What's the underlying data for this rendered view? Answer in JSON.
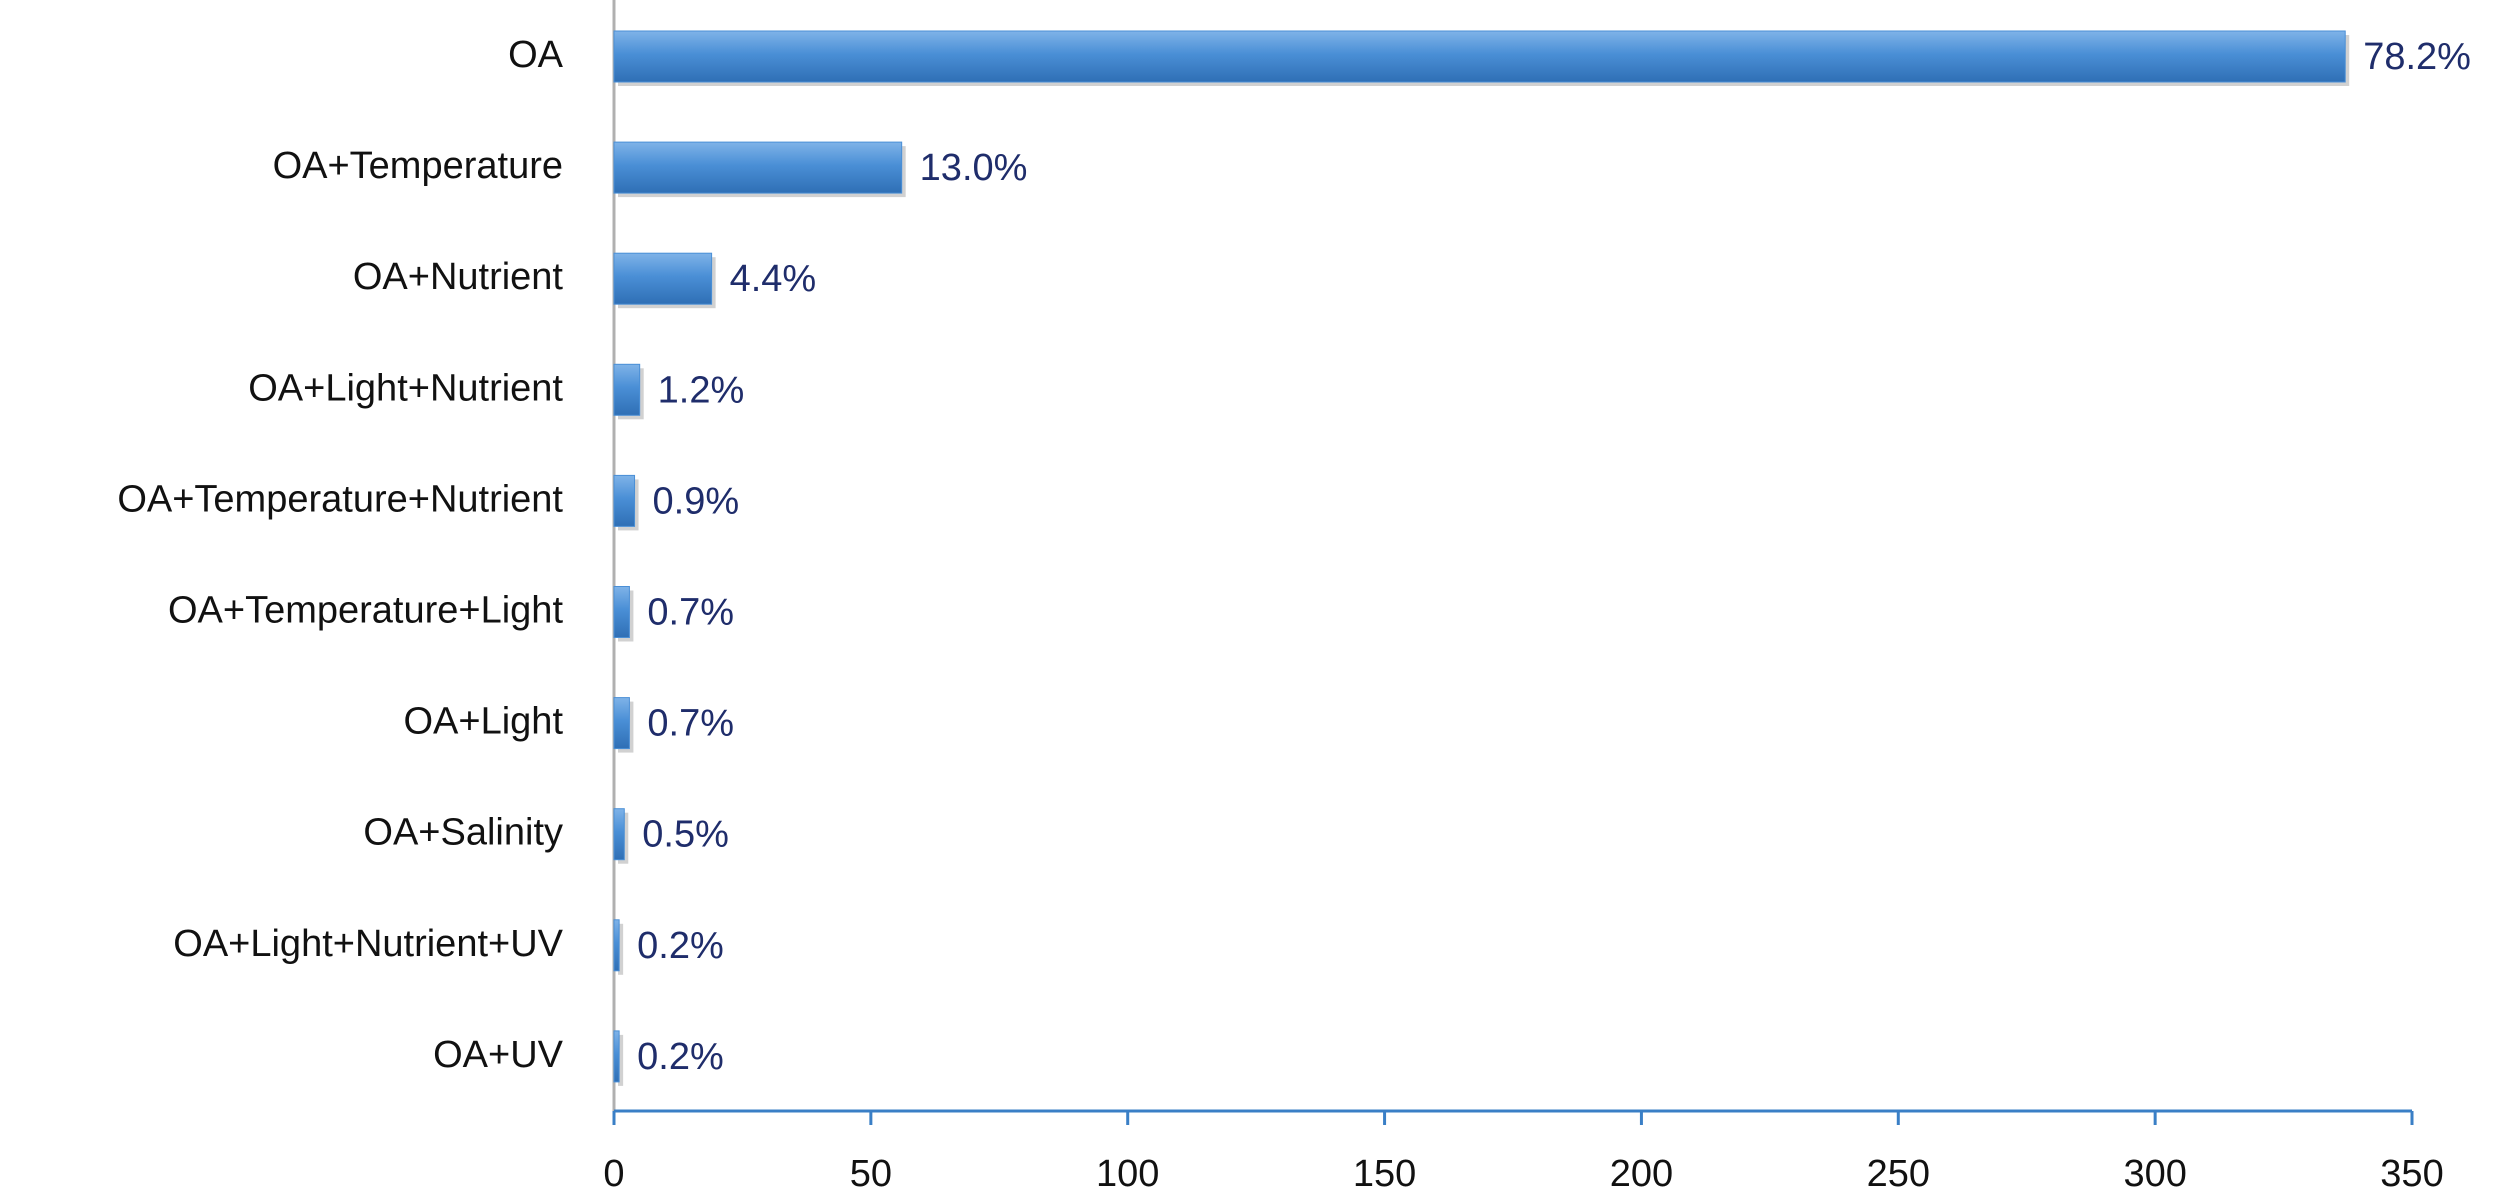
{
  "chart_data": {
    "type": "hbar",
    "categories": [
      "OA",
      "OA+Temperature",
      "OA+Nutrient",
      "OA+Light+Nutrient",
      "OA+Temperature+Nutrient",
      "OA+Temperature+Light",
      "OA+Light",
      "OA+Salinity",
      "OA+Light+Nutrient+UV",
      "OA+UV"
    ],
    "values": [
      337,
      56,
      19,
      5,
      4,
      3,
      3,
      2,
      1,
      1
    ],
    "share_labels": [
      "78.2%",
      "13.0%",
      "4.4%",
      "1.2%",
      "0.9%",
      "0.7%",
      "0.7%",
      "0.5%",
      "0.2%",
      "0.2%"
    ],
    "color": "#4a8fd6",
    "xlim": [
      0,
      350
    ],
    "xticks": [
      0,
      50,
      100,
      150,
      200,
      250,
      300,
      350
    ],
    "grid": false
  }
}
